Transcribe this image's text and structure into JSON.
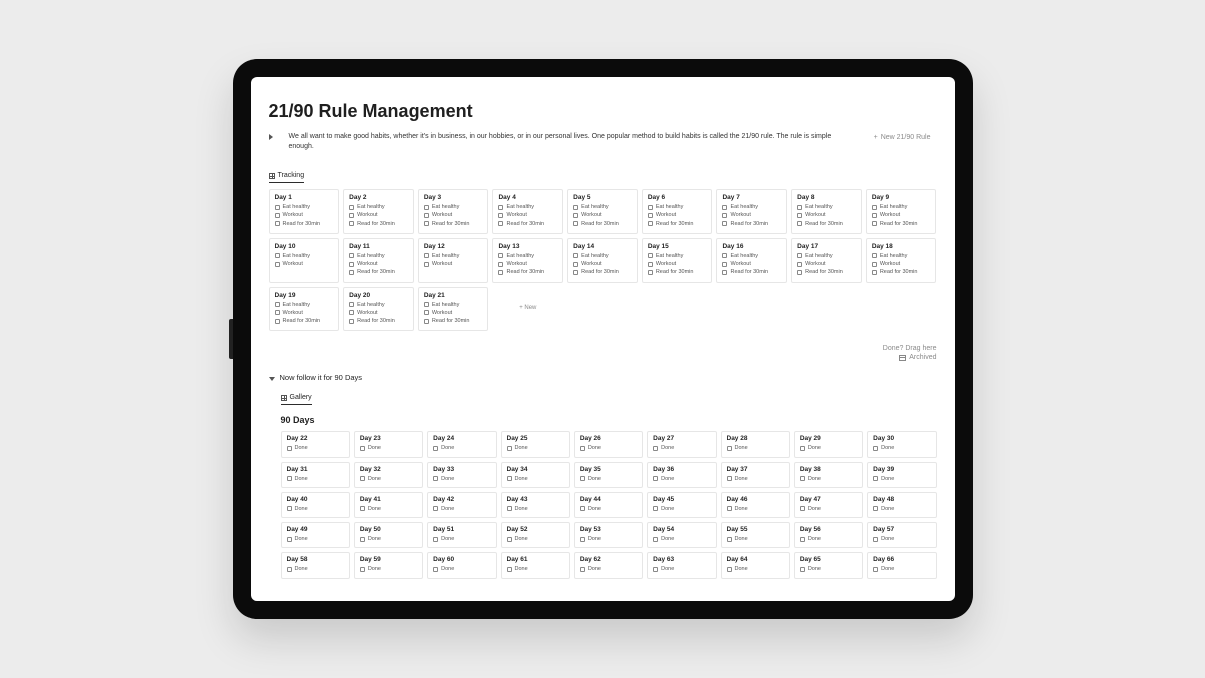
{
  "colors": {
    "page_bg": "#ececec",
    "bezel": "#0b0b0b",
    "screen_bg": "#ffffff",
    "text": "#1f1f1f",
    "muted": "#8a8a8a",
    "border": "#e6e6e6"
  },
  "page": {
    "title": "21/90 Rule Management",
    "intro": "We all want to make good habits, whether it's in business, in our hobbies, or in our personal lives. One popular method to build habits is called the 21/90 rule. The rule is simple enough.",
    "new_rule_label": "New 21/90 Rule"
  },
  "tracking": {
    "tab_label": "Tracking",
    "new_card_label": "+ New",
    "days": [
      {
        "title": "Day 1",
        "tasks": [
          "Eat healthy",
          "Workout",
          "Read for 30min"
        ]
      },
      {
        "title": "Day 2",
        "tasks": [
          "Eat healthy",
          "Workout",
          "Read for 30min"
        ]
      },
      {
        "title": "Day 3",
        "tasks": [
          "Eat healthy",
          "Workout",
          "Read for 30min"
        ]
      },
      {
        "title": "Day 4",
        "tasks": [
          "Eat healthy",
          "Workout",
          "Read for 30min"
        ]
      },
      {
        "title": "Day 5",
        "tasks": [
          "Eat healthy",
          "Workout",
          "Read for 30min"
        ]
      },
      {
        "title": "Day 6",
        "tasks": [
          "Eat healthy",
          "Workout",
          "Read for 30min"
        ]
      },
      {
        "title": "Day 7",
        "tasks": [
          "Eat healthy",
          "Workout",
          "Read for 30min"
        ]
      },
      {
        "title": "Day 8",
        "tasks": [
          "Eat healthy",
          "Workout",
          "Read for 30min"
        ]
      },
      {
        "title": "Day 9",
        "tasks": [
          "Eat healthy",
          "Workout",
          "Read for 30min"
        ]
      },
      {
        "title": "Day 10",
        "tasks": [
          "Eat healthy",
          "Workout"
        ]
      },
      {
        "title": "Day 11",
        "tasks": [
          "Eat healthy",
          "Workout",
          "Read for 30min"
        ]
      },
      {
        "title": "Day 12",
        "tasks": [
          "Eat healthy",
          "Workout"
        ]
      },
      {
        "title": "Day 13",
        "tasks": [
          "Eat healthy",
          "Workout",
          "Read for 30min"
        ]
      },
      {
        "title": "Day 14",
        "tasks": [
          "Eat healthy",
          "Workout",
          "Read for 30min"
        ]
      },
      {
        "title": "Day 15",
        "tasks": [
          "Eat healthy",
          "Workout",
          "Read for 30min"
        ]
      },
      {
        "title": "Day 16",
        "tasks": [
          "Eat healthy",
          "Workout",
          "Read for 30min"
        ]
      },
      {
        "title": "Day 17",
        "tasks": [
          "Eat healthy",
          "Workout",
          "Read for 30min"
        ]
      },
      {
        "title": "Day 18",
        "tasks": [
          "Eat healthy",
          "Workout",
          "Read for 30min"
        ]
      },
      {
        "title": "Day 19",
        "tasks": [
          "Eat healthy",
          "Workout",
          "Read for 30min"
        ]
      },
      {
        "title": "Day 20",
        "tasks": [
          "Eat healthy",
          "Workout",
          "Read for 30min"
        ]
      },
      {
        "title": "Day 21",
        "tasks": [
          "Eat healthy",
          "Workout",
          "Read for 30min"
        ]
      }
    ]
  },
  "drag": {
    "label": "Done? Drag here",
    "archived_label": "Archived"
  },
  "ninety": {
    "toggle_label": "Now follow it for 90 Days",
    "tab_label": "Gallery",
    "section_title": "90 Days",
    "done_label": "Done",
    "days": [
      {
        "title": "Day 22"
      },
      {
        "title": "Day 23"
      },
      {
        "title": "Day 24"
      },
      {
        "title": "Day 25"
      },
      {
        "title": "Day 26"
      },
      {
        "title": "Day 27"
      },
      {
        "title": "Day 28"
      },
      {
        "title": "Day 29"
      },
      {
        "title": "Day 30"
      },
      {
        "title": "Day 31"
      },
      {
        "title": "Day 32"
      },
      {
        "title": "Day 33"
      },
      {
        "title": "Day 34"
      },
      {
        "title": "Day 35"
      },
      {
        "title": "Day 36"
      },
      {
        "title": "Day 37"
      },
      {
        "title": "Day 38"
      },
      {
        "title": "Day 39"
      },
      {
        "title": "Day 40"
      },
      {
        "title": "Day 41"
      },
      {
        "title": "Day 42"
      },
      {
        "title": "Day 43"
      },
      {
        "title": "Day 44"
      },
      {
        "title": "Day 45"
      },
      {
        "title": "Day 46"
      },
      {
        "title": "Day 47"
      },
      {
        "title": "Day 48"
      },
      {
        "title": "Day 49"
      },
      {
        "title": "Day 50"
      },
      {
        "title": "Day 51"
      },
      {
        "title": "Day 52"
      },
      {
        "title": "Day 53"
      },
      {
        "title": "Day 54"
      },
      {
        "title": "Day 55"
      },
      {
        "title": "Day 56"
      },
      {
        "title": "Day 57"
      },
      {
        "title": "Day 58"
      },
      {
        "title": "Day 59"
      },
      {
        "title": "Day 60"
      },
      {
        "title": "Day 61"
      },
      {
        "title": "Day 62"
      },
      {
        "title": "Day 63"
      },
      {
        "title": "Day 64"
      },
      {
        "title": "Day 65"
      },
      {
        "title": "Day 66"
      }
    ]
  }
}
